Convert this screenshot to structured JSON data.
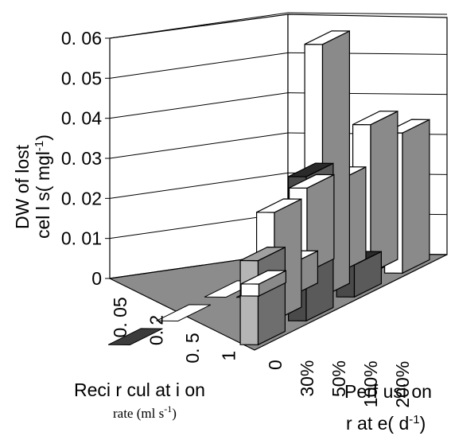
{
  "chart_data": {
    "type": "bar3d",
    "title": "",
    "zlabel": {
      "line1": "DW of  lost",
      "line2": "cel l s( mgl",
      "line2_sup": "-1",
      "line2_end": ")"
    },
    "xlabel": {
      "line1": "Perf usi on",
      "line2": "r at e( d",
      "line2_sup": "-1",
      "line2_end": ")"
    },
    "ylabel": {
      "line1": "Reci r cul at i on",
      "line2": "rate (ml s",
      "line2_sup": "-1",
      "line2_end": ")"
    },
    "zlim": [
      0,
      0.06
    ],
    "zticks": [
      "0",
      "0. 01",
      "0. 02",
      "0. 03",
      "0. 04",
      "0. 05",
      "0. 06"
    ],
    "perfusion_categories": [
      "0",
      "30%",
      "50%",
      "100%",
      "200%"
    ],
    "recirculation_categories": [
      "0. 05",
      "0. 2",
      "0. 5",
      "1"
    ],
    "series": [
      {
        "recirculation": "0. 05",
        "values": [
          0.0,
          0.0,
          0.0,
          0.0,
          0.0
        ]
      },
      {
        "recirculation": "0. 2",
        "values": [
          0.0,
          0.0,
          0.0,
          0.0,
          0.0
        ]
      },
      {
        "recirculation": "0. 5",
        "values": [
          0.0,
          0.0,
          0.0,
          0.0,
          0.0
        ]
      },
      {
        "recirculation": "1",
        "values": [
          0.0,
          0.0,
          0.0,
          0.0,
          0.0
        ]
      }
    ],
    "bars": [
      {
        "perfusion": "30%",
        "recirculation": "1",
        "value": 0.021,
        "shade": "white"
      },
      {
        "perfusion": "30%",
        "recirculation": "0. 5",
        "value": 0.003,
        "shade": "white"
      },
      {
        "perfusion": "50%",
        "recirculation": "1",
        "value": 0.023,
        "shade": "white"
      },
      {
        "perfusion": "50%",
        "recirculation": "0. 5",
        "value": 0.008,
        "shade": "white"
      },
      {
        "perfusion": "100%",
        "recirculation": "1",
        "value": 0.037,
        "shade": "white"
      },
      {
        "perfusion": "100%",
        "recirculation": "0. 5",
        "value": 0.063,
        "shade": "white"
      },
      {
        "perfusion": "100%",
        "recirculation": "0. 2",
        "value": 0.027,
        "shade": "white"
      },
      {
        "perfusion": "200%",
        "recirculation": "1",
        "value": 0.035,
        "shade": "white"
      },
      {
        "perfusion": "200%",
        "recirculation": "0. 5",
        "value": 0.008,
        "shade": "dark"
      },
      {
        "perfusion": "200%",
        "recirculation": "0. 2",
        "value": 0.036,
        "shade": "dark"
      },
      {
        "perfusion": "200%",
        "recirculation": "0. 05",
        "value": 0.021,
        "shade": "gray"
      }
    ],
    "grid": true,
    "legend": "none",
    "colors": {
      "white": "#ffffff",
      "dark": "#3c3c3c",
      "gray": "#a6a6a6",
      "floor": "#8c8c8c",
      "wall": "#ffffff",
      "edge": "#000000"
    }
  }
}
